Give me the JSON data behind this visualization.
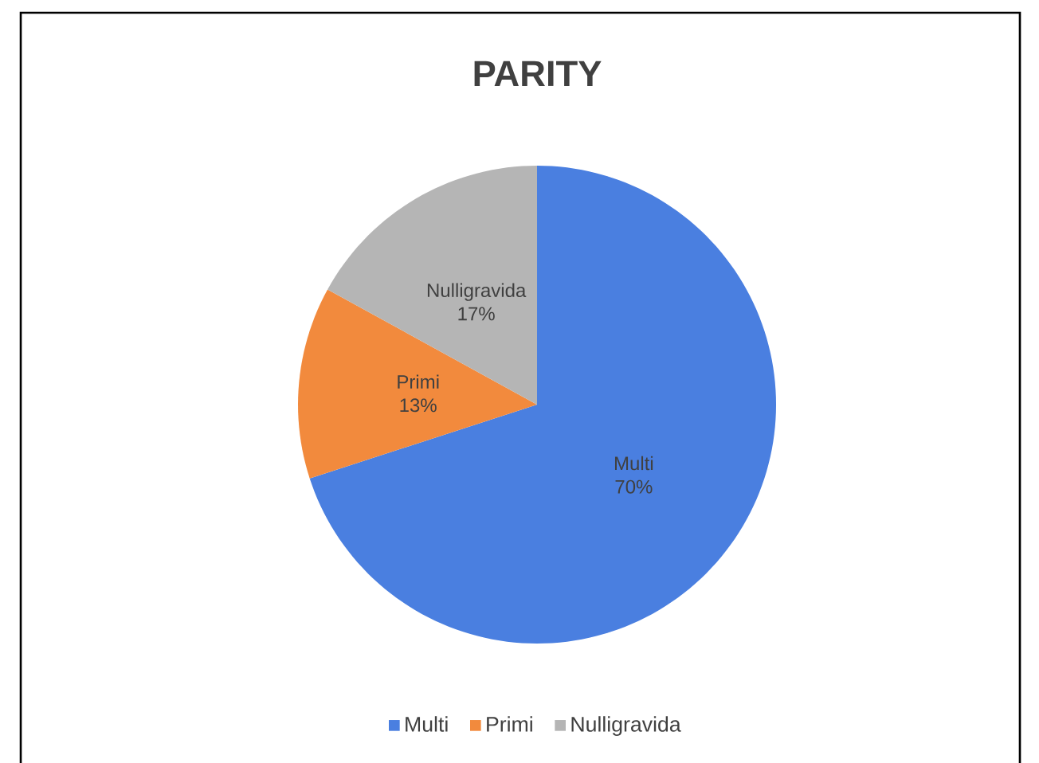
{
  "chart_data": {
    "type": "pie",
    "title": "PARITY",
    "categories": [
      "Multi",
      "Primi",
      "Nulligravida"
    ],
    "values": [
      70,
      13,
      17
    ],
    "value_labels": [
      "70%",
      "13%",
      "17%"
    ],
    "colors": [
      "#4a7fe0",
      "#f28a3d",
      "#b5b5b5"
    ],
    "legend": "bottom"
  }
}
